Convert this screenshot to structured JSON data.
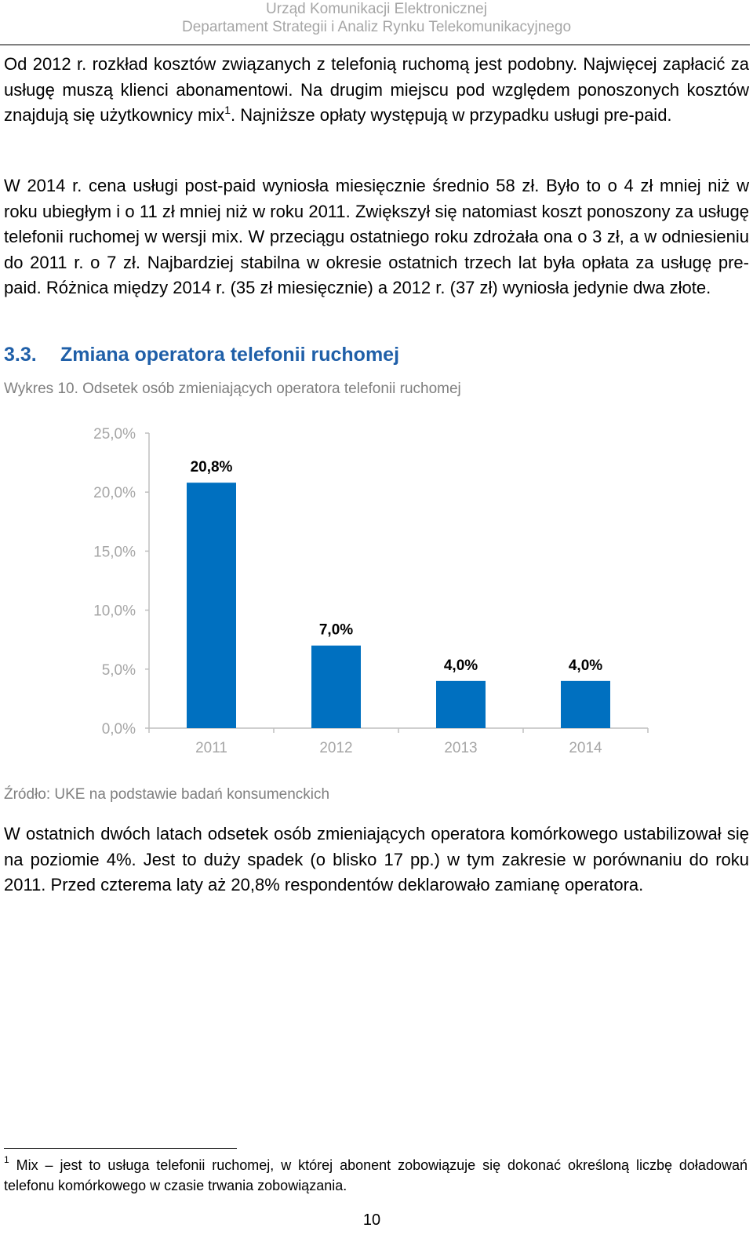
{
  "header": {
    "line1": "Urząd Komunikacji Elektronicznej",
    "line2": "Departament Strategii i Analiz Rynku Telekomunikacyjnego"
  },
  "paragraphs": {
    "p1_part1": "Od 2012 r. rozkład kosztów związanych z telefonią ruchomą jest podobny. Najwięcej zapłacić za usługę muszą klienci abonamentowi. Na drugim miejscu pod względem ponoszonych kosztów znajdują się użytkownicy mix",
    "p1_ref": "1",
    "p1_part2": ". Najniższe opłaty występują w przypadku usługi pre-paid.",
    "p2": "W 2014 r. cena usługi post-paid wyniosła miesięcznie średnio 58 zł. Było to o 4 zł mniej niż w roku ubiegłym i o 11 zł mniej niż w roku 2011. Zwiększył się natomiast koszt ponoszony za usługę telefonii ruchomej w wersji mix. W przeciągu ostatniego roku zdrożała ona o 3 zł, a w odniesieniu do 2011 r. o 7 zł. Najbardziej stabilna w okresie ostatnich trzech lat była opłata za usługę pre-paid. Różnica między 2014 r. (35 zł miesięcznie) a 2012 r. (37 zł) wyniosła jedynie dwa złote.",
    "p3": "W ostatnich dwóch latach odsetek osób zmieniających operatora komórkowego ustabilizował się na poziomie 4%. Jest to duży spadek (o blisko 17 pp.) w tym zakresie w porównaniu do roku 2011. Przed czterema laty aż 20,8% respondentów deklarowało zamianę operatora."
  },
  "section": {
    "number": "3.3.",
    "title": "Zmiana operatora telefonii ruchomej"
  },
  "chart_caption": "Wykres 10. Odsetek osób zmieniających operatora telefonii ruchomej",
  "chart_source": "Źródło: UKE na podstawie badań konsumenckich",
  "chart_data": {
    "type": "bar",
    "categories": [
      "2011",
      "2012",
      "2013",
      "2014"
    ],
    "values": [
      20.8,
      7.0,
      4.0,
      4.0
    ],
    "data_labels": [
      "20,8%",
      "7,0%",
      "4,0%",
      "4,0%"
    ],
    "yticks": [
      "0,0%",
      "5,0%",
      "10,0%",
      "15,0%",
      "20,0%",
      "25,0%"
    ],
    "ylim": [
      0,
      25
    ],
    "grid": false,
    "bar_color": "#0070c0",
    "axis_color": "#bfbfbf",
    "tick_label_color": "#a6a6a6"
  },
  "footnote": {
    "ref": "1",
    "text": " Mix – jest to usługa telefonii ruchomej, w której abonent zobowiązuje się dokonać określoną liczbę doładowań telefonu komórkowego w czasie trwania zobowiązania."
  },
  "page_number": "10"
}
